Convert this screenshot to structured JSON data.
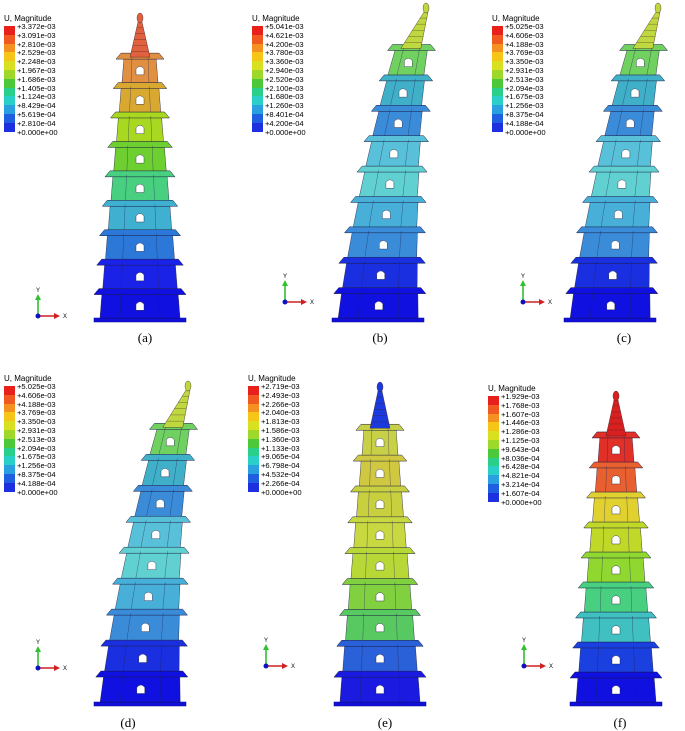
{
  "panels": [
    {
      "id": "a",
      "legend_title": "U, Magnitude",
      "legend_values": [
        "+3.372e-03",
        "+3.091e-03",
        "+2.810e-03",
        "+2.529e-03",
        "+2.248e-03",
        "+1.967e-03",
        "+1.686e-03",
        "+1.405e-03",
        "+1.124e-03",
        "+8.429e-04",
        "+5.619e-04",
        "+2.810e-04",
        "+0.000e+00"
      ],
      "caption": "(a)",
      "tilt": 0,
      "shape": "straight",
      "gradient": [
        "#1010e0",
        "#1a22e8",
        "#1f40e0",
        "#2b78d8",
        "#3fb0d0",
        "#50d8c0",
        "#48d080",
        "#6ed030",
        "#a8d820",
        "#c8c820",
        "#d8a830",
        "#e09040",
        "#e06040"
      ]
    },
    {
      "id": "b",
      "legend_title": "U, Magnitude",
      "legend_values": [
        "+5.041e-03",
        "+4.621e-03",
        "+4.200e-03",
        "+3.780e-03",
        "+3.360e-03",
        "+2.940e-03",
        "+2.520e-03",
        "+2.100e-03",
        "+1.680e-03",
        "+1.260e-03",
        "+8.401e-04",
        "+4.200e-04",
        "+0.000e+00"
      ],
      "caption": "(b)",
      "tilt": 1,
      "shape": "bent",
      "gradient": [
        "#1010e0",
        "#1a30e0",
        "#2a60d8",
        "#3a8cd8",
        "#48b0d8",
        "#60d0d0",
        "#60d0d0",
        "#58c0d8",
        "#3a8cd8",
        "#2a60d8",
        "#40b0c8",
        "#70d060",
        "#c0d840"
      ]
    },
    {
      "id": "c",
      "legend_title": "U, Magnitude",
      "legend_values": [
        "+5.025e-03",
        "+4.606e-03",
        "+4.188e-03",
        "+3.769e-03",
        "+3.350e-03",
        "+2.931e-03",
        "+2.513e-03",
        "+2.094e-03",
        "+1.675e-03",
        "+1.256e-03",
        "+8.375e-04",
        "+4.188e-04",
        "+0.000e+00"
      ],
      "caption": "(c)",
      "tilt": 1,
      "shape": "bent",
      "gradient": [
        "#1010e0",
        "#1a30e0",
        "#2a60d8",
        "#3a8cd8",
        "#48b0d8",
        "#60d0d0",
        "#60d0d0",
        "#58c0d8",
        "#3a8cd8",
        "#2a60d8",
        "#40b0c8",
        "#70d060",
        "#c0d840"
      ]
    },
    {
      "id": "d",
      "legend_title": "U, Magnitude",
      "legend_values": [
        "+5.025e-03",
        "+4.606e-03",
        "+4.188e-03",
        "+3.769e-03",
        "+3.350e-03",
        "+2.931e-03",
        "+2.513e-03",
        "+2.094e-03",
        "+1.675e-03",
        "+1.256e-03",
        "+8.375e-04",
        "+4.188e-04",
        "+0.000e+00"
      ],
      "caption": "(d)",
      "tilt": 1,
      "shape": "bent",
      "gradient": [
        "#1010e0",
        "#1a30e0",
        "#2a60d8",
        "#3a8cd8",
        "#48b0d8",
        "#60d0d0",
        "#60d0d0",
        "#58c0d8",
        "#3a8cd8",
        "#2a60d8",
        "#40b0c8",
        "#70d060",
        "#c0d840"
      ]
    },
    {
      "id": "e",
      "legend_title": "U, Magnitude",
      "legend_values": [
        "+2.719e-03",
        "+2.493e-03",
        "+2.266e-03",
        "+2.040e-03",
        "+1.813e-03",
        "+1.586e-03",
        "+1.360e-03",
        "+1.133e-03",
        "+9.065e-04",
        "+6.798e-04",
        "+4.532e-04",
        "+2.266e-04",
        "+0.000e+00"
      ],
      "caption": "(e)",
      "tilt": 0,
      "shape": "straight",
      "gradient": [
        "#1a1ae0",
        "#2a60d8",
        "#40b8a8",
        "#58c860",
        "#80d040",
        "#a0d838",
        "#b8d838",
        "#c8d840",
        "#c8d040",
        "#d8c840",
        "#d0c840",
        "#c8d048",
        "#1a3ae0"
      ]
    },
    {
      "id": "f",
      "legend_title": "U, Magnitude",
      "legend_values": [
        "+1.929e-03",
        "+1.768e-03",
        "+1.607e-03",
        "+1.446e-03",
        "+1.286e-03",
        "+1.125e-03",
        "+9.643e-04",
        "+8.036e-04",
        "+6.428e-04",
        "+4.821e-04",
        "+3.214e-04",
        "+1.607e-04",
        "+0.000e+00"
      ],
      "caption": "(f)",
      "tilt": 0,
      "shape": "straight",
      "gradient": [
        "#1010e0",
        "#1a40e0",
        "#2a8cd8",
        "#40c0c0",
        "#48d080",
        "#60d040",
        "#90d830",
        "#c0d828",
        "#e0d030",
        "#e8a030",
        "#e86030",
        "#e03028",
        "#d82020"
      ]
    }
  ],
  "axis_triad": {
    "y_label": "Y",
    "x_label": "X"
  },
  "legend_colors": [
    "#e8201c",
    "#f05a22",
    "#f59120",
    "#f5c518",
    "#d8e020",
    "#9ed82a",
    "#4cc83a",
    "#2ad08a",
    "#2ad0c8",
    "#2aa0e0",
    "#2060e0",
    "#1c30e0",
    "#1010d0"
  ]
}
